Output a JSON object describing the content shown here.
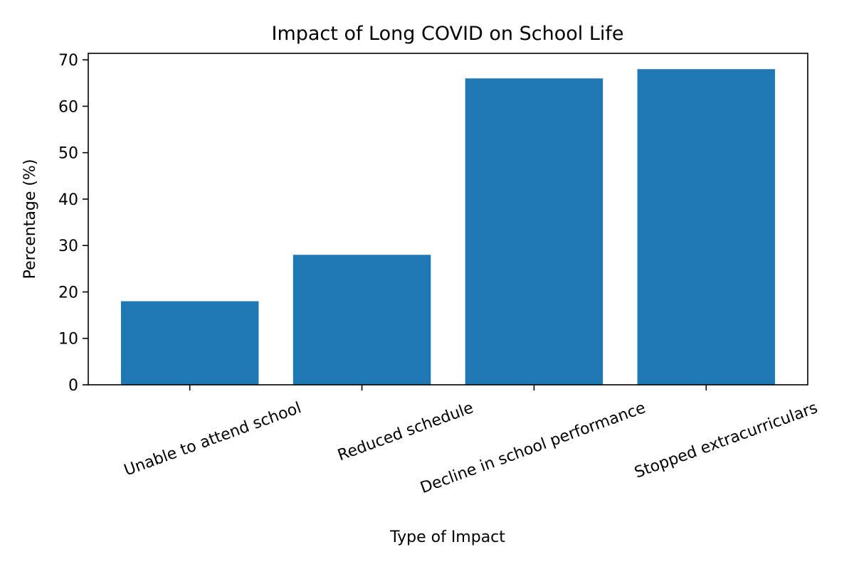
{
  "chart_data": {
    "type": "bar",
    "title": "Impact of Long COVID on School Life",
    "xlabel": "Type of Impact",
    "ylabel": "Percentage (%)",
    "categories": [
      "Unable to attend school",
      "Reduced schedule",
      "Decline in school performance",
      "Stopped extracurriculars"
    ],
    "values": [
      18,
      28,
      66,
      68
    ],
    "ylim": [
      0,
      71.4
    ],
    "yticks": [
      0,
      10,
      20,
      30,
      40,
      50,
      60,
      70
    ],
    "grid": false,
    "bar_color": "#1f77b4"
  }
}
